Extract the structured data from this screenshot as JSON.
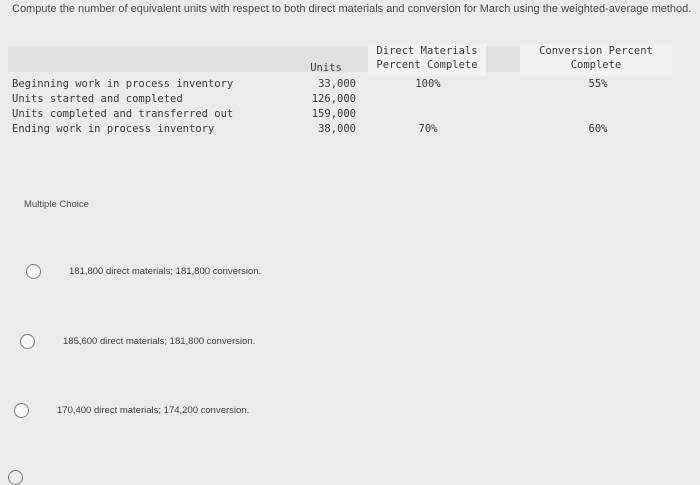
{
  "question": "Compute the number of equivalent units with respect to both direct materials and conversion for March using the weighted-average method.",
  "table": {
    "headers": {
      "units": "Units",
      "direct_materials": [
        "Direct Materials",
        "Percent Complete"
      ],
      "conversion": [
        "Conversion Percent",
        "Complete"
      ]
    },
    "rows": [
      {
        "label": "Beginning work in process inventory",
        "units": "33,000",
        "dm": "100%",
        "conv": "55%"
      },
      {
        "label": "Units started and completed",
        "units": "126,000",
        "dm": "",
        "conv": ""
      },
      {
        "label": "Units completed and transferred out",
        "units": "159,000",
        "dm": "",
        "conv": ""
      },
      {
        "label": "Ending work in process inventory",
        "units": "38,000",
        "dm": "70%",
        "conv": "60%"
      }
    ]
  },
  "multiple_choice_label": "Multiple Choice",
  "options": [
    "181,800 direct materials; 181,800 conversion.",
    "185,600 direct materials; 181,800 conversion.",
    "170,400 direct materials; 174,200 conversion."
  ]
}
